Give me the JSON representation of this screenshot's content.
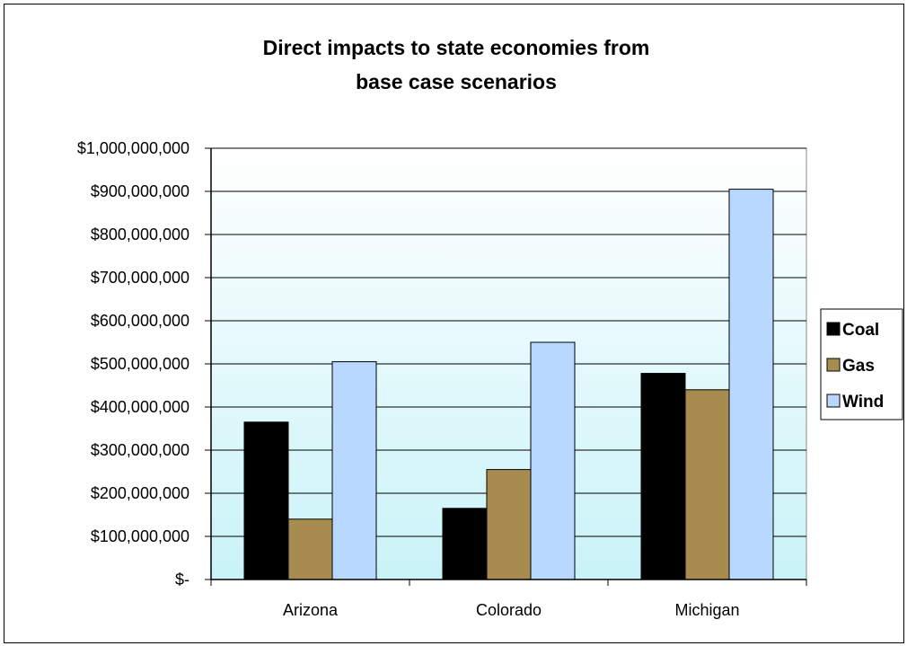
{
  "chart_data": {
    "type": "bar",
    "title": "Direct impacts to state economies from base case scenarios",
    "title_lines": [
      "Direct impacts to state economies from",
      "base case scenarios"
    ],
    "categories": [
      "Arizona",
      "Colorado",
      "Michigan"
    ],
    "series": [
      {
        "name": "Coal",
        "color": "#000000",
        "values": [
          365000000,
          165000000,
          478000000
        ]
      },
      {
        "name": "Gas",
        "color": "#a88b4f",
        "values": [
          140000000,
          255000000,
          440000000
        ]
      },
      {
        "name": "Wind",
        "color": "#b8d8ff",
        "values": [
          505000000,
          550000000,
          905000000
        ]
      }
    ],
    "ylim": [
      0,
      1000000000
    ],
    "y_ticks": [
      0,
      100000000,
      200000000,
      300000000,
      400000000,
      500000000,
      600000000,
      700000000,
      800000000,
      900000000,
      1000000000
    ],
    "y_tick_labels": [
      "$-",
      "$100,000,000",
      "$200,000,000",
      "$300,000,000",
      "$400,000,000",
      "$500,000,000",
      "$600,000,000",
      "$700,000,000",
      "$800,000,000",
      "$900,000,000",
      "$1,000,000,000"
    ],
    "xlabel": "",
    "ylabel": "",
    "grid": true,
    "legend_position": "right",
    "plot_background": "gradient light blue"
  }
}
